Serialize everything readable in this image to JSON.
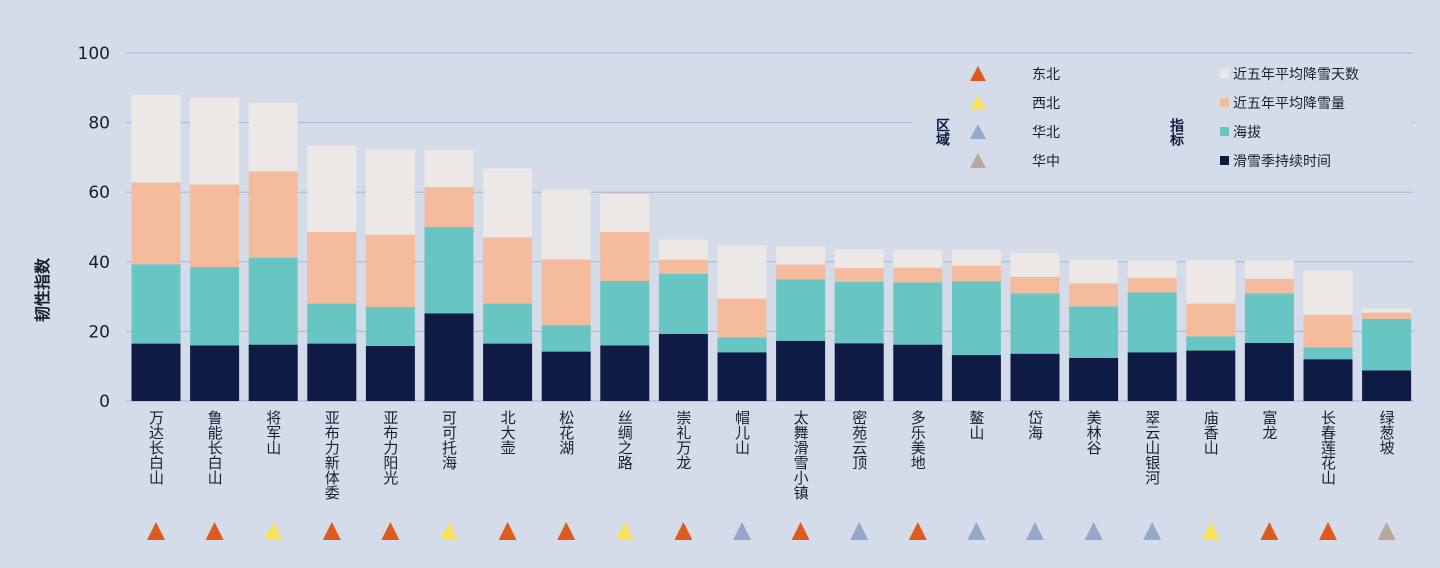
{
  "chart_data": {
    "type": "bar",
    "stacked": true,
    "ylabel": "韧性指数",
    "ylim": [
      0,
      100
    ],
    "yticks": [
      0,
      20,
      40,
      60,
      80,
      100
    ],
    "grid": true,
    "legend_position": "top-right",
    "categories": [
      "万达长白山",
      "鲁能长白山",
      "将军山",
      "亚布力新体委",
      "亚布力阳光",
      "可可托海",
      "北大壶",
      "松花湖",
      "丝绸之路",
      "崇礼万龙",
      "帽儿山",
      "太舞滑雪小镇",
      "密苑云顶",
      "多乐美地",
      "鳌山",
      "岱海",
      "美林谷",
      "翠云山银河",
      "庙香山",
      "富龙",
      "长春莲花山",
      "绿葱坡"
    ],
    "regions": [
      "东北",
      "东北",
      "西北",
      "东北",
      "东北",
      "西北",
      "东北",
      "东北",
      "西北",
      "东北",
      "华北",
      "东北",
      "华北",
      "东北",
      "华北",
      "华北",
      "华北",
      "华北",
      "西北",
      "东北",
      "东北",
      "华中"
    ],
    "series": [
      {
        "name": "滑雪季持续时间",
        "color": "#0d1b45",
        "values": [
          16.5,
          16,
          16.2,
          16.5,
          15.8,
          25.2,
          16.5,
          14.2,
          16,
          19.3,
          14,
          17.3,
          16.6,
          16.2,
          13.2,
          13.6,
          12.4,
          14,
          14.5,
          16.7,
          12,
          8.8
        ]
      },
      {
        "name": "海拔",
        "color": "#67c6c2",
        "values": [
          22.8,
          22.5,
          25,
          11.5,
          11.2,
          24.8,
          11.5,
          7.6,
          18.5,
          17.2,
          4.3,
          17.7,
          17.6,
          17.9,
          21.2,
          17.3,
          14.8,
          17.2,
          4.1,
          14.2,
          3.4,
          14.8
        ]
      },
      {
        "name": "近五年平均降雪量",
        "color": "#f4bb9d",
        "values": [
          23.5,
          23.7,
          24.8,
          20.6,
          20.8,
          11.5,
          19,
          18.9,
          14.1,
          4.1,
          11.2,
          4.2,
          4,
          4.2,
          4.5,
          4.8,
          6.6,
          4.2,
          9.4,
          4.2,
          9.4,
          1.8
        ]
      },
      {
        "name": "近五年平均降雪天数",
        "color": "#ece8e5",
        "values": [
          25.2,
          25,
          19.7,
          24.8,
          24.6,
          10.7,
          19.8,
          20.1,
          10.9,
          5.8,
          15.2,
          5.2,
          5.4,
          5.1,
          4.5,
          6.9,
          6.9,
          5,
          12.5,
          5.3,
          12.6,
          1.2
        ]
      }
    ]
  },
  "legend": {
    "region_title": "区域",
    "region_items": [
      {
        "label": "东北",
        "color": "#e05a1e"
      },
      {
        "label": "西北",
        "color": "#fae35a"
      },
      {
        "label": "华北",
        "color": "#93a8cc"
      },
      {
        "label": "华中",
        "color": "#b8a99a"
      }
    ],
    "indicator_title": "指标"
  }
}
